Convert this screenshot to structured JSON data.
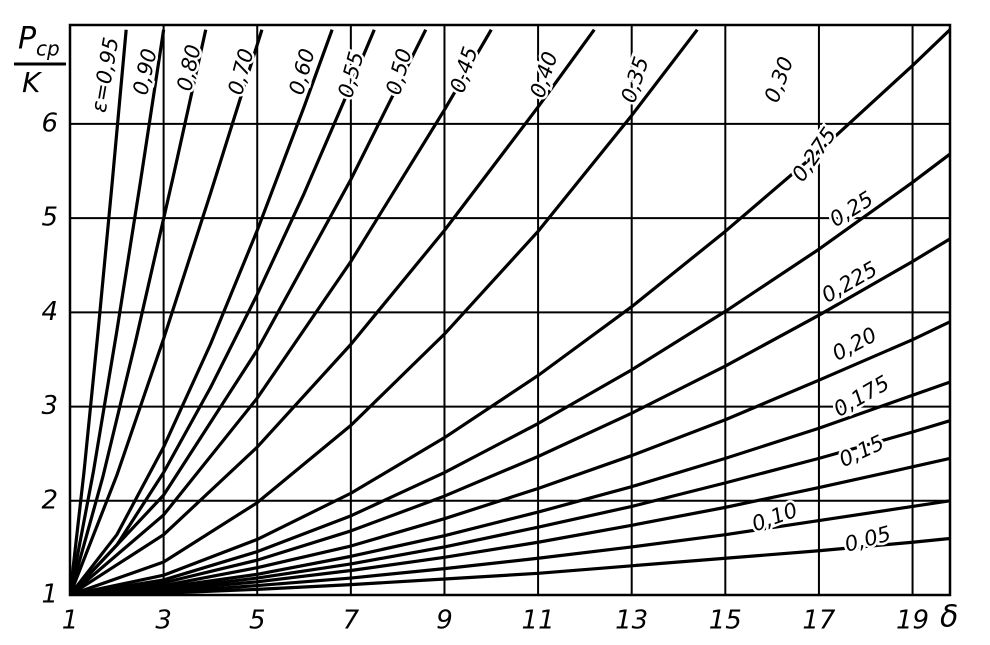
{
  "chart_data": {
    "type": "line",
    "ylabel": {
      "symbol": "P",
      "subscript": "ср",
      "denominator": "K"
    },
    "xlabel": "δ",
    "color": "#000000",
    "grid": true,
    "xlim": [
      1,
      19.8
    ],
    "ylim": [
      1,
      7.05
    ],
    "xticks": [
      1,
      3,
      5,
      7,
      9,
      11,
      13,
      15,
      17,
      19
    ],
    "yticks": [
      1,
      2,
      3,
      4,
      5,
      6
    ],
    "series": [
      {
        "name": "ε=0,95",
        "x": [
          1,
          1.3,
          1.6,
          1.9,
          2.2
        ],
        "values": [
          1,
          2.31,
          3.8,
          5.37,
          7
        ]
      },
      {
        "name": "0,90",
        "x": [
          1,
          1.5,
          2,
          2.5,
          3
        ],
        "values": [
          1,
          2.31,
          3.8,
          5.37,
          7
        ]
      },
      {
        "name": "0,80",
        "x": [
          1,
          1.7,
          2.4,
          3.2,
          3.9
        ],
        "values": [
          1,
          2.25,
          3.69,
          5.43,
          7
        ]
      },
      {
        "name": "0,70",
        "x": [
          1,
          2,
          3,
          4,
          5.1
        ],
        "values": [
          1,
          2.27,
          3.72,
          5.26,
          7
        ]
      },
      {
        "name": "0,60",
        "x": [
          1,
          2,
          3,
          4,
          5,
          6,
          6.6
        ],
        "values": [
          1,
          1.64,
          2.57,
          3.66,
          4.87,
          6.18,
          7
        ]
      },
      {
        "name": "0,55",
        "x": [
          1,
          2,
          3,
          4,
          5,
          6,
          7,
          7.5
        ],
        "values": [
          1,
          1.53,
          2.3,
          3.2,
          4.19,
          5.26,
          6.41,
          7
        ]
      },
      {
        "name": "0,50",
        "x": [
          1,
          3,
          5,
          7,
          8.6
        ],
        "values": [
          1,
          2.06,
          3.6,
          5.41,
          7
        ]
      },
      {
        "name": "0,45",
        "x": [
          1,
          3,
          5,
          7,
          9,
          10
        ],
        "values": [
          1,
          1.85,
          3.09,
          4.54,
          6.15,
          7
        ]
      },
      {
        "name": "0,40",
        "x": [
          1,
          3,
          5,
          7,
          9,
          11,
          12.2
        ],
        "values": [
          1,
          1.64,
          2.57,
          3.66,
          4.87,
          6.18,
          7
        ]
      },
      {
        "name": "0,35",
        "x": [
          1,
          3,
          5,
          7,
          9,
          11,
          13,
          14.4
        ],
        "values": [
          1,
          1.35,
          1.98,
          2.8,
          3.77,
          4.86,
          6.09,
          7
        ]
      },
      {
        "name": "0,30",
        "x": [
          1,
          3,
          5,
          7,
          9,
          11,
          13,
          15,
          17,
          19,
          19.8
        ],
        "values": [
          1,
          1.21,
          1.59,
          2.08,
          2.67,
          3.33,
          4.06,
          4.86,
          5.71,
          6.62,
          7
        ]
      },
      {
        "name": "0,275",
        "x": [
          1,
          3,
          5,
          7,
          9,
          11,
          13,
          15,
          17,
          19,
          19.8
        ],
        "values": [
          1,
          1.16,
          1.46,
          1.84,
          2.3,
          2.82,
          3.39,
          4.01,
          4.67,
          5.38,
          5.68
        ]
      },
      {
        "name": "0,25",
        "x": [
          1,
          3,
          5,
          7,
          9,
          11,
          13,
          15,
          17,
          19,
          19.8
        ],
        "values": [
          1,
          1.13,
          1.37,
          1.68,
          2.05,
          2.47,
          2.93,
          3.43,
          3.97,
          4.54,
          4.78
        ]
      },
      {
        "name": "0,225",
        "x": [
          1,
          3,
          5,
          7,
          9,
          11,
          13,
          15,
          17,
          19,
          19.8
        ],
        "values": [
          1,
          1.1,
          1.29,
          1.52,
          1.81,
          2.13,
          2.48,
          2.86,
          3.28,
          3.71,
          3.9
        ]
      },
      {
        "name": "0,20",
        "x": [
          1,
          3,
          5,
          7,
          9,
          11,
          13,
          15,
          17,
          19,
          19.8
        ],
        "values": [
          1,
          1.08,
          1.22,
          1.41,
          1.63,
          1.88,
          2.15,
          2.45,
          2.77,
          3.12,
          3.26
        ]
      },
      {
        "name": "0,175",
        "x": [
          1,
          3,
          5,
          7,
          9,
          11,
          13,
          15,
          17,
          19,
          19.8
        ],
        "values": [
          1,
          1.06,
          1.18,
          1.33,
          1.51,
          1.72,
          1.94,
          2.19,
          2.45,
          2.73,
          2.85
        ]
      },
      {
        "name": "0,15",
        "x": [
          1,
          3,
          5,
          7,
          9,
          11,
          13,
          15,
          17,
          19,
          19.8
        ],
        "values": [
          1,
          1.05,
          1.14,
          1.26,
          1.4,
          1.56,
          1.74,
          1.93,
          2.14,
          2.36,
          2.45
        ]
      },
      {
        "name": "0,10",
        "x": [
          1,
          3,
          5,
          7,
          9,
          11,
          13,
          15,
          17,
          19,
          19.8
        ],
        "values": [
          1,
          1.03,
          1.1,
          1.18,
          1.28,
          1.39,
          1.51,
          1.64,
          1.79,
          1.94,
          2
        ]
      },
      {
        "name": "0,05",
        "x": [
          1,
          3,
          5,
          7,
          9,
          11,
          13,
          15,
          17,
          19,
          19.8
        ],
        "values": [
          1,
          1.02,
          1.06,
          1.11,
          1.17,
          1.23,
          1.31,
          1.39,
          1.47,
          1.56,
          1.6
        ]
      }
    ]
  }
}
